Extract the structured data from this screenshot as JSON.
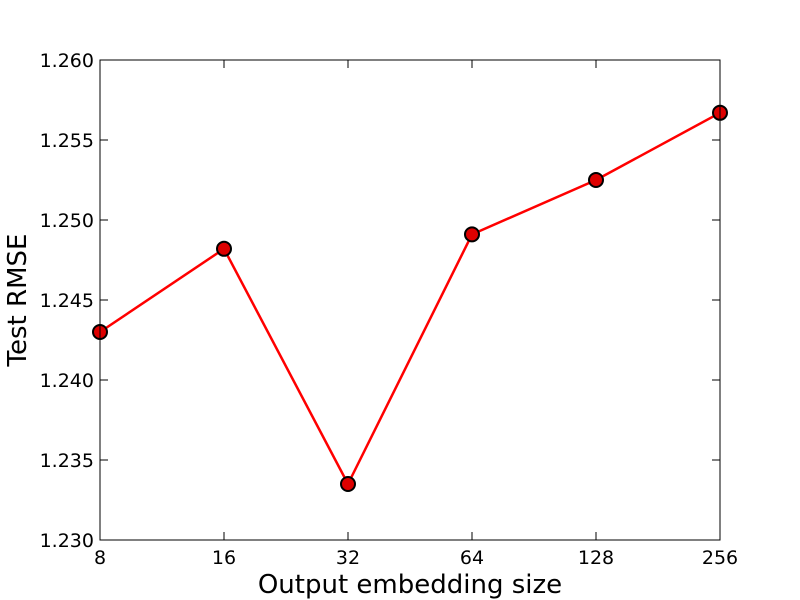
{
  "chart_data": {
    "type": "line",
    "title": "",
    "xlabel": "Output embedding size",
    "ylabel": "Test RMSE",
    "x": [
      8,
      16,
      32,
      64,
      128,
      256
    ],
    "x_scale": "log2",
    "x_ticks": [
      "8",
      "16",
      "32",
      "64",
      "128",
      "256"
    ],
    "ylim": [
      1.23,
      1.26
    ],
    "y_ticks": [
      "1.230",
      "1.235",
      "1.240",
      "1.245",
      "1.250",
      "1.255",
      "1.260"
    ],
    "grid": false,
    "legend": "none",
    "series": [
      {
        "values": [
          1.243,
          1.2482,
          1.2335,
          1.2491,
          1.2525,
          1.2567
        ],
        "line_color": "#ff0000",
        "marker_color": "#dd0000",
        "marker": "circle"
      }
    ]
  }
}
